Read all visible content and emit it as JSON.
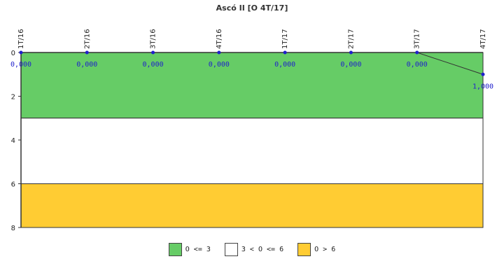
{
  "chart_data": {
    "type": "line",
    "title": "Ascó II [O 4T/17]",
    "categories": [
      "1T/16",
      "2T/16",
      "3T/16",
      "4T/16",
      "1T/17",
      "2T/17",
      "3T/17",
      "4T/17"
    ],
    "series": [
      {
        "values": [
          0,
          0,
          0,
          0,
          0,
          0,
          0,
          1
        ],
        "labels": [
          "0,000",
          "0,000",
          "0,000",
          "0,000",
          "0,000",
          "0,000",
          "0,000",
          "1,000"
        ],
        "color": "#1f1fcc"
      }
    ],
    "ylim": [
      0,
      8
    ],
    "y_inverted": true,
    "yticks": [
      0,
      2,
      4,
      6,
      8
    ],
    "bands": [
      {
        "from": 0,
        "to": 3,
        "color": "#66cc66",
        "label": "O <= 3"
      },
      {
        "from": 3,
        "to": 6,
        "color": "#ffffff",
        "label": "3 < O <= 6"
      },
      {
        "from": 6,
        "to": 8,
        "color": "#ffcc33",
        "label": "O > 6"
      }
    ],
    "grid": false,
    "legend_position": "bottom-center"
  }
}
